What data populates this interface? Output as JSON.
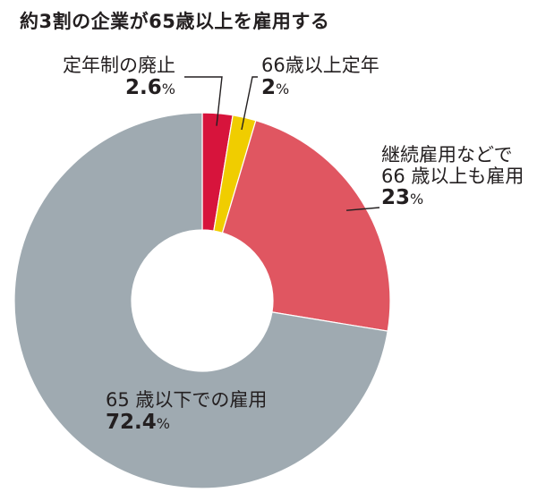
{
  "chart_data": {
    "type": "pie",
    "title": "約3割の企業が65歳以上を雇用する",
    "unit": "%",
    "start_angle": "12 o'clock, clockwise",
    "donut": true,
    "slices": [
      {
        "label": "定年制の廃止",
        "value": 2.6,
        "value_text": "2.6",
        "color": "#d7143c"
      },
      {
        "label": "66歳以上定年",
        "value": 2,
        "value_text": "2",
        "color": "#f0cd00"
      },
      {
        "label_lines": [
          "継続雇用などで",
          "66 歳以上も雇用"
        ],
        "value": 23,
        "value_text": "23",
        "color": "#e05661"
      },
      {
        "label": "65 歳以下での雇用",
        "value": 72.4,
        "value_text": "72.4",
        "color": "#9faab1"
      }
    ],
    "leader_line_color": "#231f20"
  }
}
